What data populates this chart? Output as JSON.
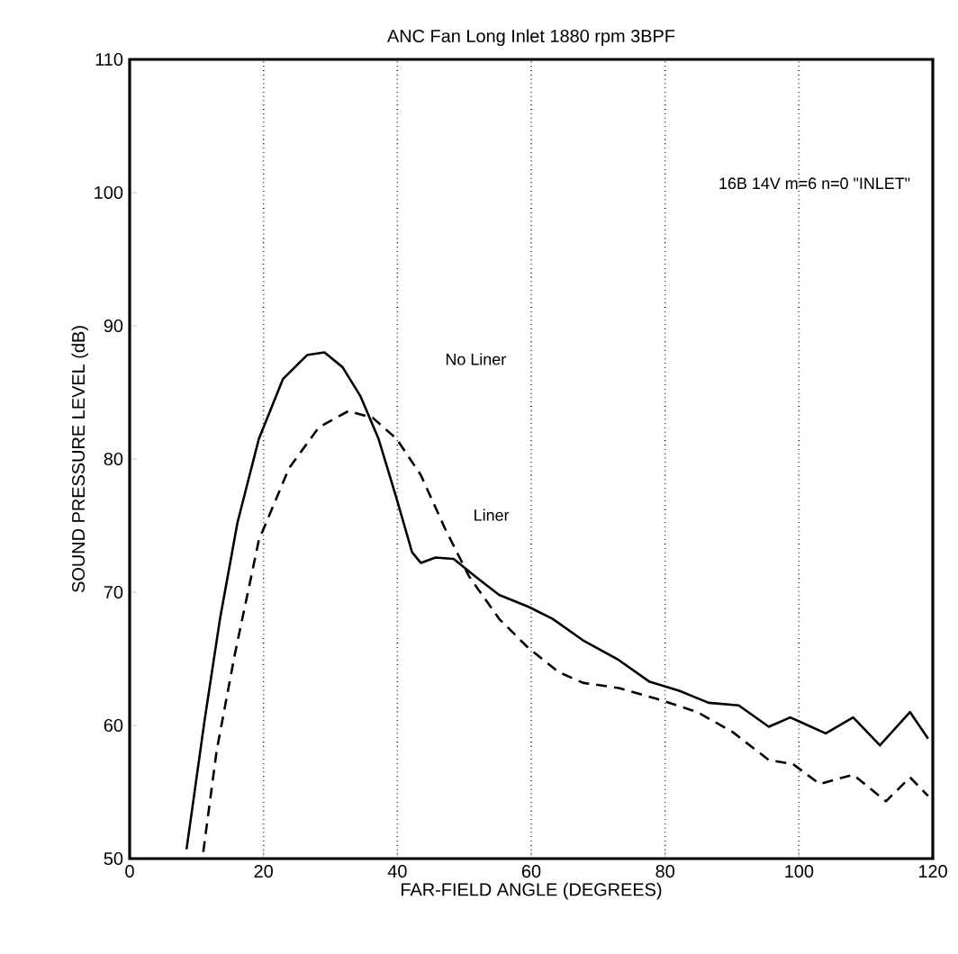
{
  "chart_data": {
    "type": "line",
    "title": "ANC Fan Long Inlet 1880 rpm 3BPF",
    "xlabel": "FAR-FIELD ANGLE (DEGREES)",
    "ylabel": "SOUND PRESSURE LEVEL (dB)",
    "xlim": [
      0,
      120
    ],
    "ylim": [
      50,
      110
    ],
    "xticks": [
      0,
      20,
      40,
      60,
      80,
      100,
      120
    ],
    "yticks": [
      50,
      60,
      70,
      80,
      90,
      100,
      110
    ],
    "grid": "x",
    "annotations": [
      "16B 14V   m=6  n=0   \"INLET\"",
      "No Liner",
      "Liner"
    ],
    "series": [
      {
        "color": "#000000",
        "line_style": "solid",
        "x": [
          8.5,
          11.2,
          13.5,
          16.1,
          19.3,
          22.9,
          26.5,
          29.1,
          31.8,
          34.5,
          37.2,
          39.9,
          42.2,
          43.5,
          45.7,
          48.4,
          51.6,
          55.2,
          59.6,
          63.2,
          67.7,
          73.1,
          77.6,
          82.1,
          86.5,
          91,
          95.5,
          98.7,
          100.9,
          104,
          108.1,
          112.1,
          116.6,
          119.3
        ],
        "values": [
          50.7,
          60.4,
          68,
          75.2,
          81.5,
          86,
          87.8,
          88,
          86.9,
          84.7,
          81.5,
          77,
          73,
          72.2,
          72.6,
          72.5,
          71.2,
          69.8,
          68.9,
          68,
          66.4,
          64.9,
          63.3,
          62.6,
          61.7,
          61.5,
          59.9,
          60.6,
          60.1,
          59.4,
          60.6,
          58.5,
          61,
          59
        ]
      },
      {
        "color": "#000000",
        "line_style": "dashed",
        "x": [
          11,
          13,
          15.7,
          19.3,
          23.8,
          28.3,
          32.7,
          36.3,
          39.9,
          43.5,
          47.1,
          50.7,
          55.2,
          59.6,
          64.1,
          67.7,
          73.1,
          79.4,
          84.8,
          90.1,
          95.5,
          99.1,
          103.1,
          108.1,
          113,
          116.6,
          119.3
        ],
        "values": [
          50.5,
          58.1,
          65.3,
          73.9,
          79.3,
          82.4,
          83.6,
          83.1,
          81.5,
          78.8,
          74.8,
          71.2,
          68,
          65.8,
          64,
          63.2,
          62.8,
          61.9,
          61,
          59.5,
          57.4,
          57.1,
          55.6,
          56.3,
          54.3,
          56.1,
          54.7
        ]
      }
    ]
  }
}
